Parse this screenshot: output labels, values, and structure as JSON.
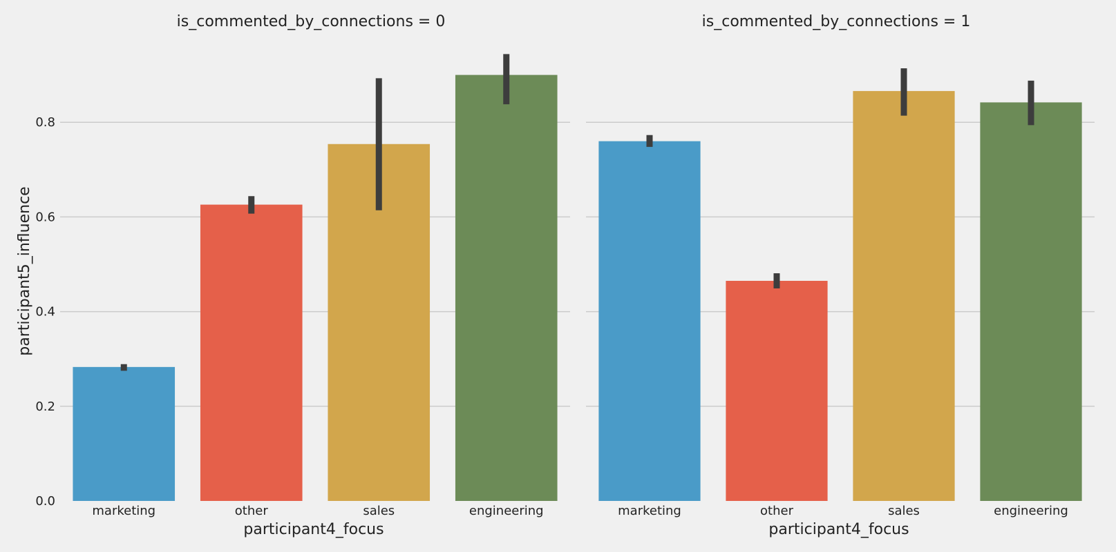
{
  "chart_data": {
    "type": "bar",
    "ylabel": "participant5_influence",
    "ylim": [
      0,
      1.0
    ],
    "yticks": [
      0.0,
      0.2,
      0.4,
      0.6,
      0.8
    ],
    "ytick_labels": [
      "0.0",
      "0.2",
      "0.4",
      "0.6",
      "0.8"
    ],
    "grid": true,
    "colors": [
      "#4a9bc8",
      "#e5604a",
      "#d2a64c",
      "#6c8b57"
    ],
    "error_bar_color": "#3d3d3d",
    "panels": [
      {
        "title": "is_commented_by_connections = 0",
        "xlabel": "participant4_focus",
        "categories": [
          "marketing",
          "other",
          "sales",
          "engineering"
        ],
        "values": [
          0.283,
          0.626,
          0.754,
          0.9
        ],
        "ci_low": [
          0.275,
          0.607,
          0.614,
          0.838
        ],
        "ci_high": [
          0.289,
          0.644,
          0.893,
          0.944
        ]
      },
      {
        "title": "is_commented_by_connections = 1",
        "xlabel": "participant4_focus",
        "categories": [
          "marketing",
          "other",
          "sales",
          "engineering"
        ],
        "values": [
          0.76,
          0.465,
          0.866,
          0.842
        ],
        "ci_low": [
          0.748,
          0.449,
          0.814,
          0.794
        ],
        "ci_high": [
          0.773,
          0.481,
          0.914,
          0.888
        ]
      }
    ]
  }
}
